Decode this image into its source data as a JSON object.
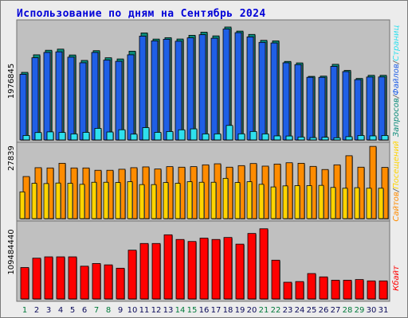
{
  "title": "Использование по дням на Сентябрь 2024",
  "colors": {
    "hits": "#1f5fe6",
    "files": "#0a8a78",
    "pages": "#2fe0ee",
    "visits": "#ff8c00",
    "sites": "#ffd400",
    "kbytes": "#ff0000",
    "weekend_label": "#007a3a",
    "weekday_label": "#0a0a5a",
    "panel_bg": "#c0c0c0",
    "separator_color": "#555555"
  },
  "separator": "/",
  "chart_data": [
    {
      "type": "bar",
      "name": "hits-files-pages",
      "title": "",
      "categories": [
        "1",
        "2",
        "3",
        "4",
        "5",
        "6",
        "7",
        "8",
        "9",
        "10",
        "11",
        "12",
        "13",
        "14",
        "15",
        "16",
        "17",
        "18",
        "19",
        "20",
        "21",
        "22",
        "23",
        "24",
        "25",
        "26",
        "27",
        "28",
        "29",
        "30",
        "31"
      ],
      "weekend_days": [
        "1",
        "7",
        "8",
        "14",
        "15",
        "21",
        "22",
        "28",
        "29"
      ],
      "ymax_label": "1976845",
      "ylim": [
        0,
        1976845
      ],
      "legend": [
        "Запросов",
        "Файлов",
        "Страниц"
      ],
      "series": [
        {
          "name": "Запросов",
          "values": [
            1143000,
            1440000,
            1517000,
            1536000,
            1437000,
            1345000,
            1510000,
            1390000,
            1370000,
            1501000,
            1810000,
            1706000,
            1730000,
            1707000,
            1770000,
            1823000,
            1760000,
            1910000,
            1841000,
            1785000,
            1685000,
            1676000,
            1328000,
            1303000,
            1075000,
            1079000,
            1279000,
            1176000,
            1040000,
            1093000,
            1093000
          ]
        },
        {
          "name": "Файлов",
          "values": [
            1110000,
            1390000,
            1480000,
            1490000,
            1400000,
            1305000,
            1480000,
            1350000,
            1330000,
            1440000,
            1756000,
            1676000,
            1703000,
            1670000,
            1727000,
            1780000,
            1720000,
            1876000,
            1815000,
            1743000,
            1650000,
            1640000,
            1305000,
            1274000,
            1060000,
            1059000,
            1244000,
            1156000,
            1020000,
            1064000,
            1065000
          ]
        },
        {
          "name": "Страниц",
          "values": [
            75000,
            125000,
            136000,
            126000,
            102000,
            128000,
            195000,
            134000,
            172000,
            98000,
            208000,
            128000,
            142000,
            171000,
            187000,
            102000,
            102000,
            245000,
            103000,
            143000,
            102000,
            68000,
            66000,
            49000,
            39000,
            45000,
            36000,
            55000,
            75000,
            68000,
            75000
          ]
        }
      ]
    },
    {
      "type": "bar",
      "name": "visits-sites",
      "title": "",
      "categories": [
        "1",
        "2",
        "3",
        "4",
        "5",
        "6",
        "7",
        "8",
        "9",
        "10",
        "11",
        "12",
        "13",
        "14",
        "15",
        "16",
        "17",
        "18",
        "19",
        "20",
        "21",
        "22",
        "23",
        "24",
        "25",
        "26",
        "27",
        "28",
        "29",
        "30",
        "31"
      ],
      "ymax_label": "27839",
      "ylim": [
        0,
        27839
      ],
      "legend": [
        "Сайтов",
        "Посещений"
      ],
      "series": [
        {
          "name": "Посещений",
          "values": [
            16200,
            19600,
            19500,
            21300,
            19500,
            19500,
            18600,
            18600,
            19000,
            19600,
            19900,
            19100,
            20000,
            19800,
            20000,
            20700,
            21100,
            19800,
            20400,
            21200,
            20200,
            21000,
            21500,
            21300,
            20100,
            18900,
            20700,
            24200,
            19800,
            27800,
            19700
          ]
        },
        {
          "name": "Сайтов",
          "values": [
            10300,
            13600,
            13500,
            13700,
            13600,
            13200,
            14000,
            14000,
            13900,
            14200,
            13100,
            13100,
            13900,
            13600,
            14200,
            14000,
            14000,
            15500,
            13900,
            14200,
            13200,
            12200,
            12600,
            12700,
            12700,
            12800,
            12000,
            11700,
            11900,
            11700,
            11700
          ]
        }
      ]
    },
    {
      "type": "bar",
      "name": "kbytes",
      "title": "",
      "categories": [
        "1",
        "2",
        "3",
        "4",
        "5",
        "6",
        "7",
        "8",
        "9",
        "10",
        "11",
        "12",
        "13",
        "14",
        "15",
        "16",
        "17",
        "18",
        "19",
        "20",
        "21",
        "22",
        "23",
        "24",
        "25",
        "26",
        "27",
        "28",
        "29",
        "30",
        "31"
      ],
      "ymax_label": "109484440",
      "ylim": [
        0,
        109484440
      ],
      "legend": [
        "Кбайт"
      ],
      "series": [
        {
          "name": "Кбайт",
          "values": [
            47000000,
            61000000,
            63000000,
            63000000,
            63000000,
            49000000,
            53000000,
            51000000,
            46000000,
            73000000,
            83000000,
            83000000,
            96000000,
            89000000,
            86000000,
            91000000,
            89000000,
            92000000,
            82000000,
            98000000,
            105000000,
            58000000,
            25000000,
            26000000,
            38000000,
            33000000,
            28000000,
            28000000,
            29000000,
            27000000,
            27000000
          ]
        }
      ]
    }
  ]
}
